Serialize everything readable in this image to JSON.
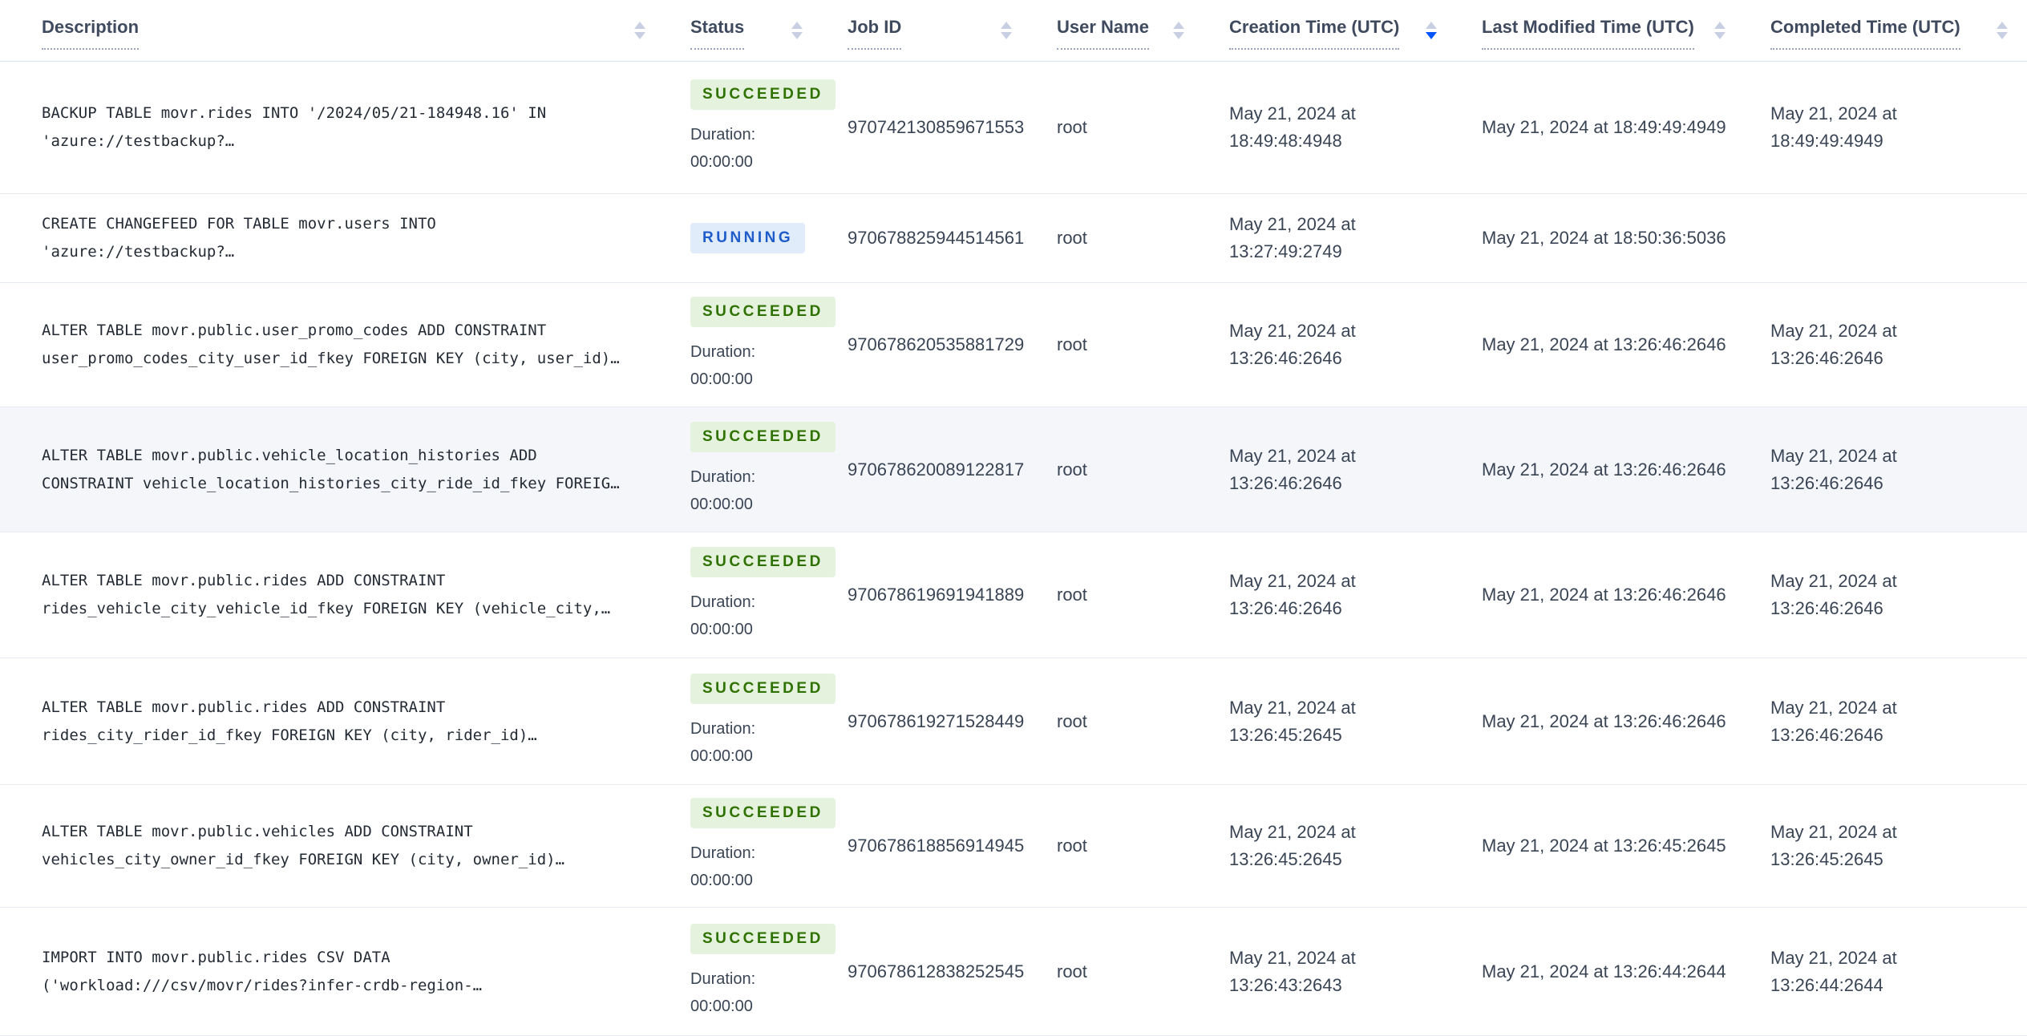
{
  "colors": {
    "succeeded_bg": "#e5f2dd",
    "succeeded_text": "#2f7200",
    "running_bg": "#e1ecfb",
    "running_text": "#1d5cc9",
    "sort_active": "#0055ff",
    "highlight_row_bg": "#f4f6fa"
  },
  "table": {
    "duration_label": "Duration:",
    "columns": [
      {
        "label": "Description",
        "sort": "none"
      },
      {
        "label": "Status",
        "sort": "none"
      },
      {
        "label": "Job ID",
        "sort": "none"
      },
      {
        "label": "User Name",
        "sort": "none"
      },
      {
        "label": "Creation Time (UTC)",
        "sort": "desc"
      },
      {
        "label": "Last Modified Time (UTC)",
        "sort": "none"
      },
      {
        "label": "Completed Time (UTC)",
        "sort": "none"
      }
    ],
    "rows": [
      {
        "description": "BACKUP TABLE movr.rides INTO '/2024/05/21-184948.16' IN\n'azure://testbackup?…",
        "status": "SUCCEEDED",
        "duration": "00:00:00",
        "job_id": "970742130859671553",
        "user_name": "root",
        "creation_time": "May 21, 2024 at\n18:49:48:4948",
        "last_modified_time": "May 21, 2024 at 18:49:49:4949",
        "completed_time": "May 21, 2024 at\n18:49:49:4949",
        "highlighted": false
      },
      {
        "description": "CREATE CHANGEFEED FOR TABLE movr.users INTO\n'azure://testbackup?…",
        "status": "RUNNING",
        "duration": null,
        "job_id": "970678825944514561",
        "user_name": "root",
        "creation_time": "May 21, 2024 at\n13:27:49:2749",
        "last_modified_time": "May 21, 2024 at 18:50:36:5036",
        "completed_time": "",
        "highlighted": false
      },
      {
        "description": "ALTER TABLE movr.public.user_promo_codes ADD CONSTRAINT\nuser_promo_codes_city_user_id_fkey FOREIGN KEY (city, user_id)…",
        "status": "SUCCEEDED",
        "duration": "00:00:00",
        "job_id": "970678620535881729",
        "user_name": "root",
        "creation_time": "May 21, 2024 at\n13:26:46:2646",
        "last_modified_time": "May 21, 2024 at 13:26:46:2646",
        "completed_time": "May 21, 2024 at\n13:26:46:2646",
        "highlighted": false
      },
      {
        "description": "ALTER TABLE movr.public.vehicle_location_histories ADD\nCONSTRAINT vehicle_location_histories_city_ride_id_fkey FOREIG…",
        "status": "SUCCEEDED",
        "duration": "00:00:00",
        "job_id": "970678620089122817",
        "user_name": "root",
        "creation_time": "May 21, 2024 at\n13:26:46:2646",
        "last_modified_time": "May 21, 2024 at 13:26:46:2646",
        "completed_time": "May 21, 2024 at\n13:26:46:2646",
        "highlighted": true
      },
      {
        "description": "ALTER TABLE movr.public.rides ADD CONSTRAINT\nrides_vehicle_city_vehicle_id_fkey FOREIGN KEY (vehicle_city,…",
        "status": "SUCCEEDED",
        "duration": "00:00:00",
        "job_id": "970678619691941889",
        "user_name": "root",
        "creation_time": "May 21, 2024 at\n13:26:46:2646",
        "last_modified_time": "May 21, 2024 at 13:26:46:2646",
        "completed_time": "May 21, 2024 at\n13:26:46:2646",
        "highlighted": false
      },
      {
        "description": "ALTER TABLE movr.public.rides ADD CONSTRAINT\nrides_city_rider_id_fkey FOREIGN KEY (city, rider_id)…",
        "status": "SUCCEEDED",
        "duration": "00:00:00",
        "job_id": "970678619271528449",
        "user_name": "root",
        "creation_time": "May 21, 2024 at\n13:26:45:2645",
        "last_modified_time": "May 21, 2024 at 13:26:46:2646",
        "completed_time": "May 21, 2024 at\n13:26:46:2646",
        "highlighted": false
      },
      {
        "description": "ALTER TABLE movr.public.vehicles ADD CONSTRAINT\nvehicles_city_owner_id_fkey FOREIGN KEY (city, owner_id)…",
        "status": "SUCCEEDED",
        "duration": "00:00:00",
        "job_id": "970678618856914945",
        "user_name": "root",
        "creation_time": "May 21, 2024 at\n13:26:45:2645",
        "last_modified_time": "May 21, 2024 at 13:26:45:2645",
        "completed_time": "May 21, 2024 at\n13:26:45:2645",
        "highlighted": false
      },
      {
        "description": "IMPORT INTO movr.public.rides CSV DATA\n('workload:///csv/movr/rides?infer-crdb-region-…",
        "status": "SUCCEEDED",
        "duration": "00:00:00",
        "job_id": "970678612838252545",
        "user_name": "root",
        "creation_time": "May 21, 2024 at\n13:26:43:2643",
        "last_modified_time": "May 21, 2024 at 13:26:44:2644",
        "completed_time": "May 21, 2024 at\n13:26:44:2644",
        "highlighted": false
      }
    ]
  }
}
